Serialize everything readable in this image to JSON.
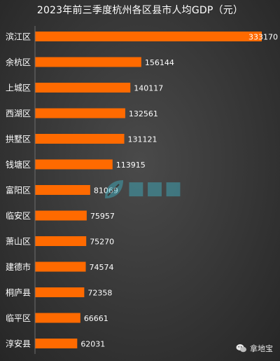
{
  "chart_data": {
    "type": "bar",
    "orientation": "horizontal",
    "title": "2023年前三季度杭州各区县市人均GDP（元）",
    "categories": [
      "滨江区",
      "余杭区",
      "上城区",
      "西湖区",
      "拱墅区",
      "钱塘区",
      "富阳区",
      "临安区",
      "萧山区",
      "建德市",
      "桐庐县",
      "临平区",
      "淳安县"
    ],
    "values": [
      333170,
      156144,
      140117,
      132561,
      131121,
      113915,
      81069,
      75957,
      75270,
      74574,
      72358,
      66661,
      62031
    ],
    "value_labels": [
      "333170",
      "156144",
      "140117",
      "132561",
      "131121",
      "113915",
      "81069",
      "75957",
      "75270",
      "74574",
      "72358",
      "66661",
      "62031"
    ],
    "xlim": [
      0,
      333170
    ],
    "bar_color": "#ff6a00",
    "background_color": "#3a3a3a",
    "grid": false,
    "legend": "none"
  },
  "watermark_icon": "leaf-logo-icon",
  "brand": {
    "icon": "wechat-icon",
    "label": "拿地宝"
  }
}
